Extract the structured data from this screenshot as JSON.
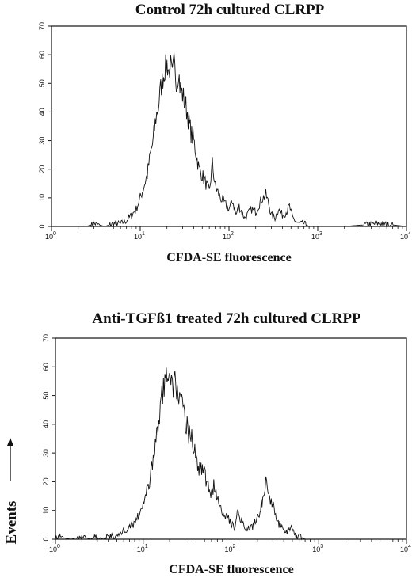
{
  "chart_data": [
    {
      "type": "line",
      "title": "Control 72h cultured CLRPP",
      "xlabel": "CFDA-SE fluorescence",
      "ylabel": "",
      "xscale": "log",
      "xlim": [
        1,
        10000
      ],
      "ylim": [
        0,
        70
      ],
      "yticks": [
        "0",
        "10",
        "20",
        "30",
        "40",
        "50",
        "60",
        "70"
      ],
      "xticks": [
        {
          "base": "10",
          "exp": "0"
        },
        {
          "base": "10",
          "exp": "1"
        },
        {
          "base": "10",
          "exp": "2"
        },
        {
          "base": "10",
          "exp": "3"
        },
        {
          "base": "10",
          "exp": "4"
        }
      ],
      "grid": false,
      "series": [
        {
          "x": [
            1,
            2.5,
            3,
            4,
            5,
            6,
            7,
            8,
            9,
            10,
            11,
            12,
            13,
            14,
            15,
            16,
            17,
            18,
            19,
            20,
            21,
            22,
            23,
            24,
            25,
            26,
            27,
            28,
            30,
            32,
            34,
            36,
            38,
            40,
            43,
            46,
            50,
            55,
            60,
            65,
            70,
            75,
            80,
            90,
            100,
            110,
            120,
            130,
            140,
            150,
            160,
            180,
            200,
            220,
            240,
            260,
            280,
            300,
            330,
            360,
            400,
            440,
            480,
            520,
            560,
            600,
            700,
            800,
            1000,
            2000,
            5000,
            10000
          ],
          "y": [
            0,
            0,
            1,
            0,
            1,
            1,
            2,
            4,
            6,
            10,
            14,
            18,
            25,
            30,
            38,
            42,
            48,
            52,
            55,
            57,
            54,
            56,
            52,
            57,
            53,
            50,
            55,
            49,
            46,
            43,
            40,
            35,
            32,
            30,
            25,
            20,
            18,
            15,
            12,
            22,
            14,
            12,
            10,
            8,
            6,
            9,
            4,
            7,
            5,
            3,
            4,
            6,
            5,
            8,
            10,
            11,
            8,
            4,
            3,
            6,
            4,
            5,
            7,
            3,
            2,
            1,
            1,
            0,
            0,
            0,
            1,
            0
          ]
        }
      ]
    },
    {
      "type": "line",
      "title": "Anti-TGFß1 treated 72h cultured CLRPP",
      "xlabel": "CFDA-SE fluorescence",
      "ylabel": "Events",
      "xscale": "log",
      "xlim": [
        1,
        10000
      ],
      "ylim": [
        0,
        70
      ],
      "yticks": [
        "0",
        "10",
        "20",
        "30",
        "40",
        "50",
        "60",
        "70"
      ],
      "xticks": [
        {
          "base": "10",
          "exp": "0"
        },
        {
          "base": "10",
          "exp": "1"
        },
        {
          "base": "10",
          "exp": "2"
        },
        {
          "base": "10",
          "exp": "3"
        },
        {
          "base": "10",
          "exp": "4"
        }
      ],
      "grid": false,
      "series": [
        {
          "x": [
            1,
            1.5,
            2,
            2.5,
            3,
            3.5,
            4,
            5,
            6,
            7,
            8,
            9,
            10,
            11,
            12,
            13,
            14,
            15,
            16,
            17,
            18,
            19,
            20,
            21,
            22,
            23,
            24,
            25,
            27,
            29,
            31,
            33,
            35,
            38,
            41,
            44,
            48,
            52,
            56,
            60,
            65,
            70,
            75,
            80,
            90,
            100,
            110,
            120,
            130,
            140,
            150,
            170,
            190,
            210,
            230,
            250,
            270,
            300,
            340,
            380,
            420,
            460,
            500,
            550,
            600,
            700,
            1000,
            10000
          ],
          "y": [
            1,
            0,
            1,
            0,
            1,
            0,
            1,
            1,
            3,
            4,
            6,
            9,
            12,
            16,
            22,
            27,
            35,
            42,
            48,
            52,
            56,
            58,
            55,
            59,
            52,
            56,
            50,
            53,
            47,
            43,
            40,
            36,
            38,
            30,
            28,
            24,
            26,
            20,
            18,
            16,
            19,
            15,
            13,
            10,
            8,
            6,
            4,
            10,
            7,
            5,
            3,
            4,
            6,
            9,
            14,
            22,
            15,
            12,
            6,
            4,
            2,
            3,
            4,
            1,
            1,
            0,
            0,
            0
          ]
        }
      ]
    }
  ]
}
